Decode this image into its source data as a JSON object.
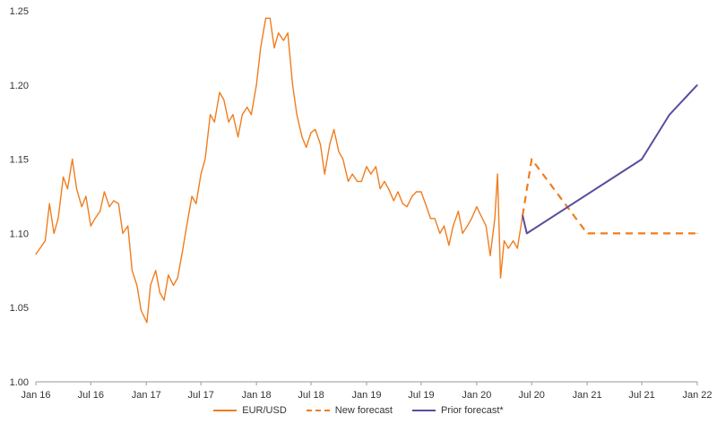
{
  "chart_data": {
    "type": "line",
    "title": "",
    "xlabel": "",
    "ylabel": "",
    "ylim": [
      1.0,
      1.25
    ],
    "y_ticks": [
      "1.00",
      "1.05",
      "1.10",
      "1.15",
      "1.20",
      "1.25"
    ],
    "x_ticks": [
      "Jan 16",
      "Jul 16",
      "Jan 17",
      "Jul 17",
      "Jan 18",
      "Jul 18",
      "Jan 19",
      "Jul 19",
      "Jan 20",
      "Jul 20",
      "Jan 21",
      "Jul 21",
      "Jan 22"
    ],
    "grid": false,
    "legend_position": "bottom",
    "series": [
      {
        "name": "EUR/USD",
        "style": "solid",
        "color": "#f07d1e",
        "points": [
          [
            "2016-01-01",
            1.086
          ],
          [
            "2016-01-15",
            1.09
          ],
          [
            "2016-02-01",
            1.095
          ],
          [
            "2016-02-15",
            1.12
          ],
          [
            "2016-03-01",
            1.1
          ],
          [
            "2016-03-15",
            1.11
          ],
          [
            "2016-04-01",
            1.138
          ],
          [
            "2016-04-15",
            1.13
          ],
          [
            "2016-05-01",
            1.15
          ],
          [
            "2016-05-15",
            1.13
          ],
          [
            "2016-06-01",
            1.118
          ],
          [
            "2016-06-15",
            1.125
          ],
          [
            "2016-07-01",
            1.105
          ],
          [
            "2016-07-15",
            1.11
          ],
          [
            "2016-08-01",
            1.115
          ],
          [
            "2016-08-15",
            1.128
          ],
          [
            "2016-09-01",
            1.118
          ],
          [
            "2016-09-15",
            1.122
          ],
          [
            "2016-10-01",
            1.12
          ],
          [
            "2016-10-15",
            1.1
          ],
          [
            "2016-11-01",
            1.105
          ],
          [
            "2016-11-15",
            1.075
          ],
          [
            "2016-12-01",
            1.065
          ],
          [
            "2016-12-15",
            1.048
          ],
          [
            "2017-01-03",
            1.04
          ],
          [
            "2017-01-15",
            1.065
          ],
          [
            "2017-02-01",
            1.075
          ],
          [
            "2017-02-15",
            1.06
          ],
          [
            "2017-03-01",
            1.055
          ],
          [
            "2017-03-15",
            1.072
          ],
          [
            "2017-04-01",
            1.065
          ],
          [
            "2017-04-15",
            1.07
          ],
          [
            "2017-05-01",
            1.088
          ],
          [
            "2017-05-15",
            1.105
          ],
          [
            "2017-06-01",
            1.125
          ],
          [
            "2017-06-15",
            1.12
          ],
          [
            "2017-07-01",
            1.14
          ],
          [
            "2017-07-15",
            1.15
          ],
          [
            "2017-08-01",
            1.18
          ],
          [
            "2017-08-15",
            1.175
          ],
          [
            "2017-09-01",
            1.195
          ],
          [
            "2017-09-15",
            1.19
          ],
          [
            "2017-10-01",
            1.175
          ],
          [
            "2017-10-15",
            1.18
          ],
          [
            "2017-11-01",
            1.165
          ],
          [
            "2017-11-15",
            1.18
          ],
          [
            "2017-12-01",
            1.185
          ],
          [
            "2017-12-15",
            1.18
          ],
          [
            "2018-01-01",
            1.2
          ],
          [
            "2018-01-15",
            1.225
          ],
          [
            "2018-02-01",
            1.245
          ],
          [
            "2018-02-15",
            1.245
          ],
          [
            "2018-03-01",
            1.225
          ],
          [
            "2018-03-15",
            1.235
          ],
          [
            "2018-04-01",
            1.23
          ],
          [
            "2018-04-15",
            1.235
          ],
          [
            "2018-05-01",
            1.2
          ],
          [
            "2018-05-15",
            1.18
          ],
          [
            "2018-06-01",
            1.165
          ],
          [
            "2018-06-15",
            1.158
          ],
          [
            "2018-07-01",
            1.168
          ],
          [
            "2018-07-15",
            1.17
          ],
          [
            "2018-08-01",
            1.16
          ],
          [
            "2018-08-15",
            1.14
          ],
          [
            "2018-09-01",
            1.16
          ],
          [
            "2018-09-15",
            1.17
          ],
          [
            "2018-10-01",
            1.155
          ],
          [
            "2018-10-15",
            1.15
          ],
          [
            "2018-11-01",
            1.135
          ],
          [
            "2018-11-15",
            1.14
          ],
          [
            "2018-12-01",
            1.135
          ],
          [
            "2018-12-15",
            1.135
          ],
          [
            "2019-01-01",
            1.145
          ],
          [
            "2019-01-15",
            1.14
          ],
          [
            "2019-02-01",
            1.145
          ],
          [
            "2019-02-15",
            1.13
          ],
          [
            "2019-03-01",
            1.135
          ],
          [
            "2019-03-15",
            1.13
          ],
          [
            "2019-04-01",
            1.122
          ],
          [
            "2019-04-15",
            1.128
          ],
          [
            "2019-05-01",
            1.12
          ],
          [
            "2019-05-15",
            1.118
          ],
          [
            "2019-06-01",
            1.125
          ],
          [
            "2019-06-15",
            1.128
          ],
          [
            "2019-07-01",
            1.128
          ],
          [
            "2019-07-15",
            1.12
          ],
          [
            "2019-08-01",
            1.11
          ],
          [
            "2019-08-15",
            1.11
          ],
          [
            "2019-09-01",
            1.1
          ],
          [
            "2019-09-15",
            1.105
          ],
          [
            "2019-10-01",
            1.092
          ],
          [
            "2019-10-15",
            1.105
          ],
          [
            "2019-11-01",
            1.115
          ],
          [
            "2019-11-15",
            1.1
          ],
          [
            "2019-12-01",
            1.105
          ],
          [
            "2019-12-15",
            1.11
          ],
          [
            "2020-01-01",
            1.118
          ],
          [
            "2020-01-15",
            1.112
          ],
          [
            "2020-02-01",
            1.105
          ],
          [
            "2020-02-15",
            1.085
          ],
          [
            "2020-03-01",
            1.11
          ],
          [
            "2020-03-10",
            1.14
          ],
          [
            "2020-03-20",
            1.07
          ],
          [
            "2020-04-01",
            1.095
          ],
          [
            "2020-04-15",
            1.09
          ],
          [
            "2020-05-01",
            1.095
          ],
          [
            "2020-05-15",
            1.09
          ],
          [
            "2020-06-01",
            1.112
          ]
        ]
      },
      {
        "name": "New forecast",
        "style": "dashed",
        "color": "#f07d1e",
        "points": [
          [
            "2020-06-01",
            1.112
          ],
          [
            "2020-07-01",
            1.15
          ],
          [
            "2021-01-01",
            1.1
          ],
          [
            "2022-01-01",
            1.1
          ]
        ]
      },
      {
        "name": "Prior forecast*",
        "style": "solid",
        "color": "#5b4c9e",
        "points": [
          [
            "2020-06-01",
            1.112
          ],
          [
            "2020-06-15",
            1.1
          ],
          [
            "2021-07-01",
            1.15
          ],
          [
            "2021-10-01",
            1.18
          ],
          [
            "2022-01-01",
            1.2
          ]
        ]
      }
    ]
  }
}
